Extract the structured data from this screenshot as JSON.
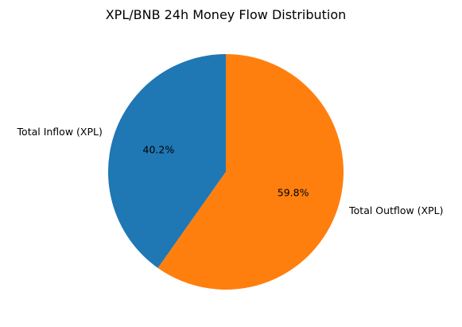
{
  "chart_data": {
    "type": "pie",
    "title": "XPL/BNB 24h Money Flow Distribution",
    "slices": [
      {
        "label": "Total Inflow (XPL)",
        "value": 40.2,
        "pct_label": "40.2%",
        "color": "#1f77b4"
      },
      {
        "label": "Total Outflow (XPL)",
        "value": 59.8,
        "pct_label": "59.8%",
        "color": "#ff7f0e"
      }
    ],
    "start_angle_deg": 90,
    "direction": "counterclockwise",
    "legend": "none"
  }
}
